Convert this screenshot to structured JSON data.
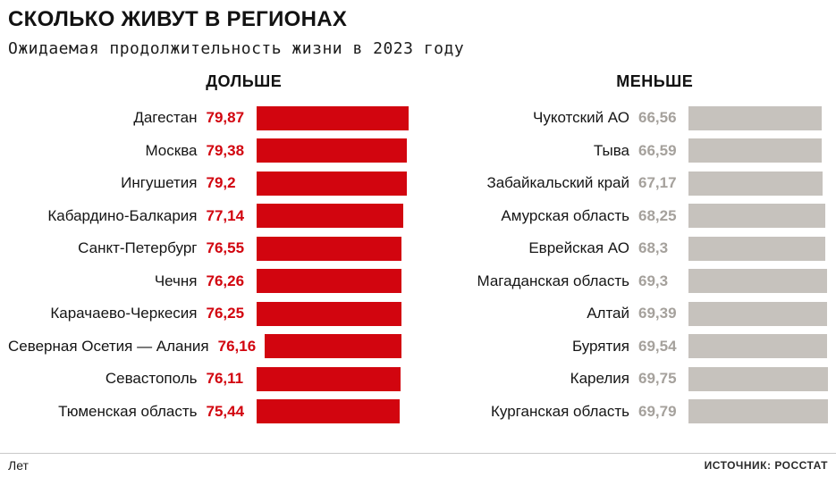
{
  "header": {
    "title": "СКОЛЬКО ЖИВУТ В РЕГИОНАХ",
    "subtitle": "Ожидаемая продолжительность жизни в 2023 году"
  },
  "chart_data": {
    "type": "bar",
    "orientation": "horizontal",
    "title": "СКОЛЬКО ЖИВУТ В РЕГИОНАХ",
    "subtitle": "Ожидаемая продолжительность жизни в 2023 году",
    "unit": "Лет",
    "source": "ИСТОЧНИК: РОССТАТ",
    "legend_position": "column-headers",
    "grid": false,
    "series": [
      {
        "name": "ДОЛЬШЕ",
        "bar_color": "#d2050f",
        "value_color": "#d2050f",
        "categories": [
          "Дагестан",
          "Москва",
          "Ингушетия",
          "Кабардино-Балкария",
          "Санкт-Петербург",
          "Чечня",
          "Карачаево-Черкесия",
          "Северная Осетия — Алания",
          "Севастополь",
          "Тюменская область"
        ],
        "values": [
          79.87,
          79.38,
          79.2,
          77.14,
          76.55,
          76.26,
          76.25,
          76.16,
          76.11,
          75.44
        ],
        "value_labels": [
          "79,87",
          "79,38",
          "79,2",
          "77,14",
          "76,55",
          "76,26",
          "76,25",
          "76,16",
          "76,11",
          "75,44"
        ]
      },
      {
        "name": "МЕНЬШЕ",
        "bar_color": "#c6c2bd",
        "value_color": "#a5a19c",
        "categories": [
          "Чукотский АО",
          "Тыва",
          "Забайкальский край",
          "Амурская область",
          "Еврейская АО",
          "Магаданская область",
          "Алтай",
          "Бурятия",
          "Карелия",
          "Курганская область"
        ],
        "values": [
          66.56,
          66.59,
          67.17,
          68.25,
          68.3,
          69.3,
          69.39,
          69.54,
          69.75,
          69.79
        ],
        "value_labels": [
          "66,56",
          "66,59",
          "67,17",
          "68,25",
          "68,3",
          "69,3",
          "69,39",
          "69,54",
          "69,75",
          "69,79"
        ]
      }
    ]
  },
  "footer": {
    "unit": "Лет",
    "source": "ИСТОЧНИК: РОССТАТ"
  }
}
